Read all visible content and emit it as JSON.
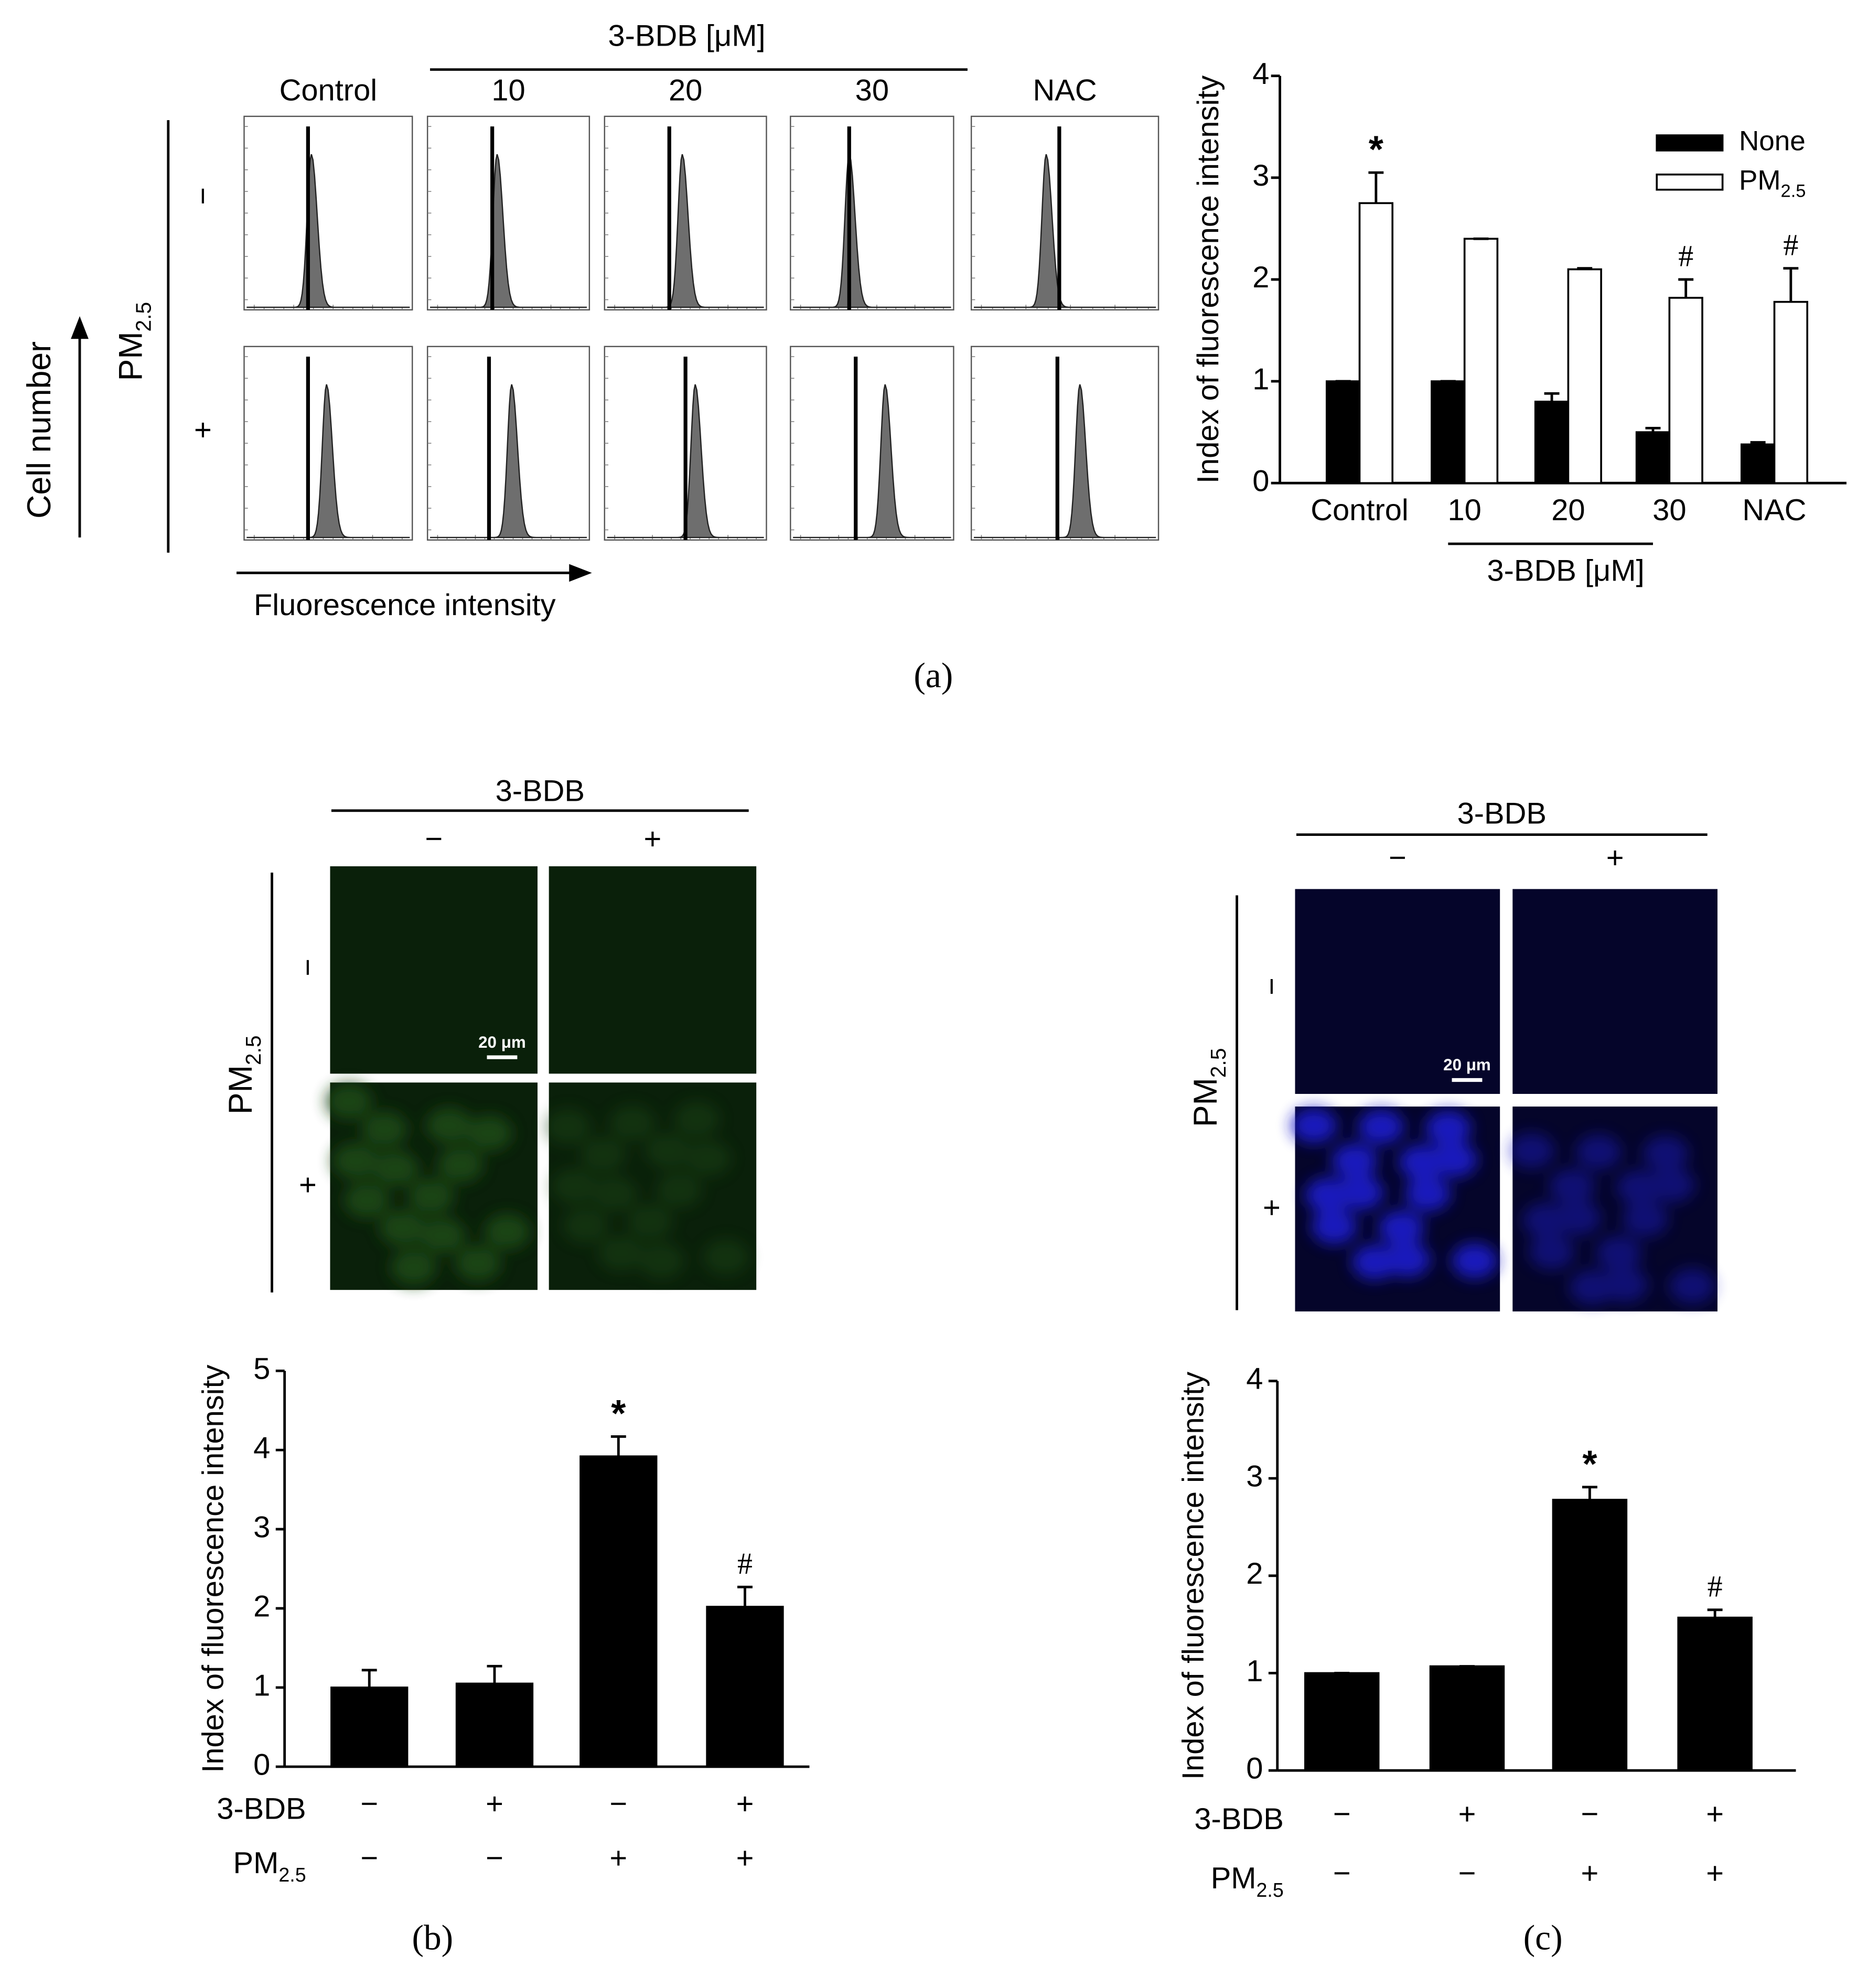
{
  "figure": {
    "panel_labels": [
      "(a)",
      "(b)",
      "(c)"
    ],
    "flow": {
      "group_label": "3-BDB  [μM]",
      "columns": [
        "Control",
        "10",
        "20",
        "30",
        "NAC"
      ],
      "rows": [
        "−",
        "+"
      ],
      "row_label": "PM2.5",
      "y_label": "Cell number",
      "x_label": "Fluorescence intensity"
    },
    "microscopy": [
      {
        "group_label": "3-BDB",
        "columns": [
          "−",
          "+"
        ],
        "rows": [
          "−",
          "+"
        ],
        "row_label": "PM2.5",
        "scale_bar": "20 μm",
        "color": "#1c4a17"
      },
      {
        "group_label": "3-BDB",
        "columns": [
          "−",
          "+"
        ],
        "rows": [
          "−",
          "+"
        ],
        "row_label": "PM2.5",
        "scale_bar": "20 μm",
        "color": "#1a1acc"
      }
    ]
  },
  "chart_data": [
    {
      "type": "bar",
      "ylabel": "Index of fluorescence intensity",
      "categories": [
        "Control",
        "10",
        "20",
        "30",
        "NAC"
      ],
      "group_label": "3-BDB  [μM]",
      "series": [
        {
          "name": "None",
          "color": "#000000",
          "values": [
            1,
            1,
            0.8,
            0.5,
            0.38
          ],
          "errors": [
            0,
            0,
            0.08,
            0.04,
            0.02
          ],
          "annotations": [
            null,
            null,
            null,
            null,
            null
          ]
        },
        {
          "name": "PM2.5",
          "color": "#ffffff",
          "values": [
            2.75,
            2.4,
            2.1,
            1.82,
            1.78
          ],
          "errors": [
            0.3,
            0,
            0.01,
            0.18,
            0.33
          ],
          "annotations": [
            "*",
            null,
            null,
            "#",
            "#"
          ]
        }
      ],
      "ylim": [
        0,
        4
      ],
      "yticks": [
        0,
        1,
        2,
        3,
        4
      ],
      "legend": "top-right"
    },
    {
      "type": "bar",
      "ylabel": "Index of fluorescence intensity",
      "conditions": [
        {
          "name": "3-BDB",
          "values": [
            "−",
            "+",
            "−",
            "+"
          ]
        },
        {
          "name": "PM2.5",
          "values": [
            "−",
            "−",
            "+",
            "+"
          ]
        }
      ],
      "series": [
        {
          "color": "#000000",
          "values": [
            1,
            1.05,
            3.92,
            2.02
          ],
          "errors": [
            0.22,
            0.22,
            0.25,
            0.25
          ],
          "annotations": [
            null,
            null,
            "*",
            "#"
          ]
        }
      ],
      "ylim": [
        0,
        5
      ],
      "yticks": [
        0,
        1,
        2,
        3,
        4,
        5
      ]
    },
    {
      "type": "bar",
      "ylabel": "Index of fluorescence intensity",
      "conditions": [
        {
          "name": "3-BDB",
          "values": [
            "−",
            "+",
            "−",
            "+"
          ]
        },
        {
          "name": "PM2.5",
          "values": [
            "−",
            "−",
            "+",
            "+"
          ]
        }
      ],
      "series": [
        {
          "color": "#000000",
          "values": [
            1,
            1.07,
            2.78,
            1.57
          ],
          "errors": [
            0,
            0,
            0.13,
            0.08
          ],
          "annotations": [
            null,
            null,
            "*",
            "#"
          ]
        }
      ],
      "ylim": [
        0,
        4
      ],
      "yticks": [
        0,
        1,
        2,
        3,
        4
      ]
    }
  ]
}
